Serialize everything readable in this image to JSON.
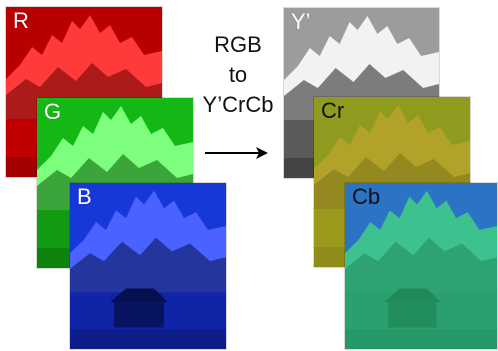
{
  "panels": {
    "r": {
      "label": "R",
      "base": "#c00000",
      "sky": "#b80000",
      "peak": "#ff3a3a",
      "shade": "#6a0000"
    },
    "g": {
      "label": "G",
      "base": "#129a12",
      "sky": "#14b814",
      "peak": "#7dff7d",
      "shade": "#055a05"
    },
    "b": {
      "label": "B",
      "base": "#1024a8",
      "sky": "#1638d8",
      "peak": "#4a62ff",
      "shade": "#06104f"
    },
    "y": {
      "label": "Y’",
      "base": "#5a5a5a",
      "sky": "#9c9c9c",
      "peak": "#f2f2f2",
      "shade": "#1c1c1c"
    },
    "cr": {
      "label": "Cr",
      "base": "#9b9a1c",
      "sky": "#8e9b1f",
      "peak": "#b3a22a",
      "shade": "#787518"
    },
    "cb": {
      "label": "Cb",
      "base": "#2aa06f",
      "sky": "#2b73c4",
      "peak": "#3dc28f",
      "shade": "#208a5a"
    }
  },
  "caption": {
    "line1": "RGB",
    "line2": "to",
    "line3": "Y’CrCb"
  },
  "arrow_icon": "right-arrow-icon"
}
